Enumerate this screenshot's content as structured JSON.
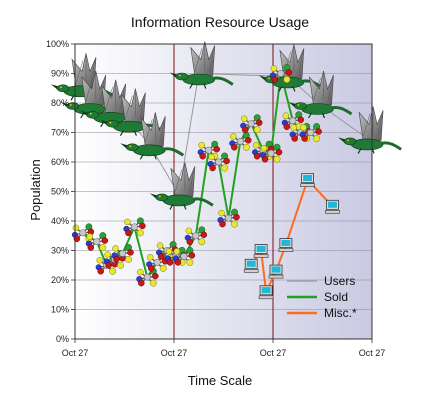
{
  "chart_data": {
    "type": "line",
    "title": "Information Resource Usage",
    "xlabel": "Time Scale",
    "ylabel": "Population",
    "x_ticks": [
      "Oct 27",
      "Oct 27",
      "Oct 27",
      "Oct 27"
    ],
    "y_ticks": [
      "0%",
      "10%",
      "20%",
      "30%",
      "40%",
      "50%",
      "60%",
      "70%",
      "80%",
      "90%",
      "100%"
    ],
    "ylim": [
      0,
      100
    ],
    "xlim": [
      0,
      30
    ],
    "grid": true,
    "legend_position": "bottom-right",
    "series": [
      {
        "name": "Users",
        "color": "#999999",
        "marker": "dragon-icon",
        "x": [
          0.5,
          1.5,
          3.5,
          5.5,
          7.5,
          10.5,
          12.5,
          21.5,
          24.5,
          29.5
        ],
        "values": [
          86,
          80,
          77,
          74,
          66,
          49,
          90,
          89,
          80,
          68
        ]
      },
      {
        "name": "Sold",
        "color": "#22a022",
        "marker": "molecule-icon",
        "x": [
          0.8,
          2.2,
          3.2,
          4.0,
          4.8,
          6.0,
          7.3,
          8.3,
          9.3,
          10.2,
          11.0,
          12.2,
          13.5,
          14.5,
          15.5,
          16.7,
          17.8,
          19.0,
          19.8,
          20.8,
          22.0,
          22.8,
          23.8
        ],
        "values": [
          36,
          33,
          25,
          27,
          29,
          38,
          21,
          26,
          30,
          28,
          28,
          35,
          64,
          60,
          41,
          67,
          73,
          64,
          63,
          90,
          74,
          70,
          70
        ]
      },
      {
        "name": "Misc.*",
        "color": "#ff6a1f",
        "marker": "computer-icon",
        "x": [
          17.8,
          18.8,
          19.3,
          20.3,
          21.3,
          23.5,
          26.0
        ],
        "values": [
          25,
          30,
          16,
          23,
          32,
          54,
          45
        ]
      }
    ]
  }
}
